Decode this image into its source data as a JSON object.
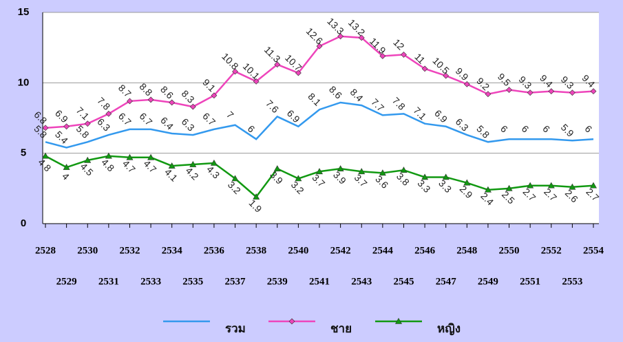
{
  "chart_data": {
    "type": "line",
    "categories": [
      "2528",
      "2529",
      "2530",
      "2531",
      "2532",
      "2533",
      "2534",
      "2535",
      "2536",
      "2537",
      "2538",
      "2539",
      "2540",
      "2541",
      "2542",
      "2543",
      "2544",
      "2545",
      "2546",
      "2547",
      "2548",
      "2549",
      "2550",
      "2551",
      "2552",
      "2553",
      "2554"
    ],
    "series": [
      {
        "name": "รวม",
        "color": "#3399ee",
        "marker": "none",
        "values": [
          5.8,
          5.4,
          5.8,
          6.3,
          6.7,
          6.7,
          6.4,
          6.3,
          6.7,
          7,
          6,
          7.6,
          6.9,
          8.1,
          8.6,
          8.4,
          7.7,
          7.8,
          7.1,
          6.9,
          6.3,
          5.8,
          6,
          6,
          6,
          5.9,
          6
        ]
      },
      {
        "name": "ชาย",
        "color": "#ee44bb",
        "marker": "diamond",
        "values": [
          6.8,
          6.9,
          7.1,
          7.8,
          8.7,
          8.8,
          8.6,
          8.3,
          9.1,
          10.8,
          10.1,
          11.3,
          10.7,
          12.6,
          13.3,
          13.2,
          11.9,
          12,
          11,
          10.5,
          9.9,
          9.2,
          9.5,
          9.3,
          9.4,
          9.3,
          9.4
        ]
      },
      {
        "name": "หญิง",
        "color": "#119911",
        "marker": "triangle",
        "values": [
          4.8,
          4,
          4.5,
          4.8,
          4.7,
          4.7,
          4.1,
          4.2,
          4.3,
          3.2,
          1.9,
          3.9,
          3.2,
          3.7,
          3.9,
          3.7,
          3.6,
          3.8,
          3.3,
          3.3,
          2.9,
          2.4,
          2.5,
          2.7,
          2.7,
          2.6,
          2.7
        ]
      }
    ],
    "ylim": [
      0,
      15
    ],
    "yticks": [
      0,
      5,
      10,
      15
    ],
    "grid": true
  }
}
